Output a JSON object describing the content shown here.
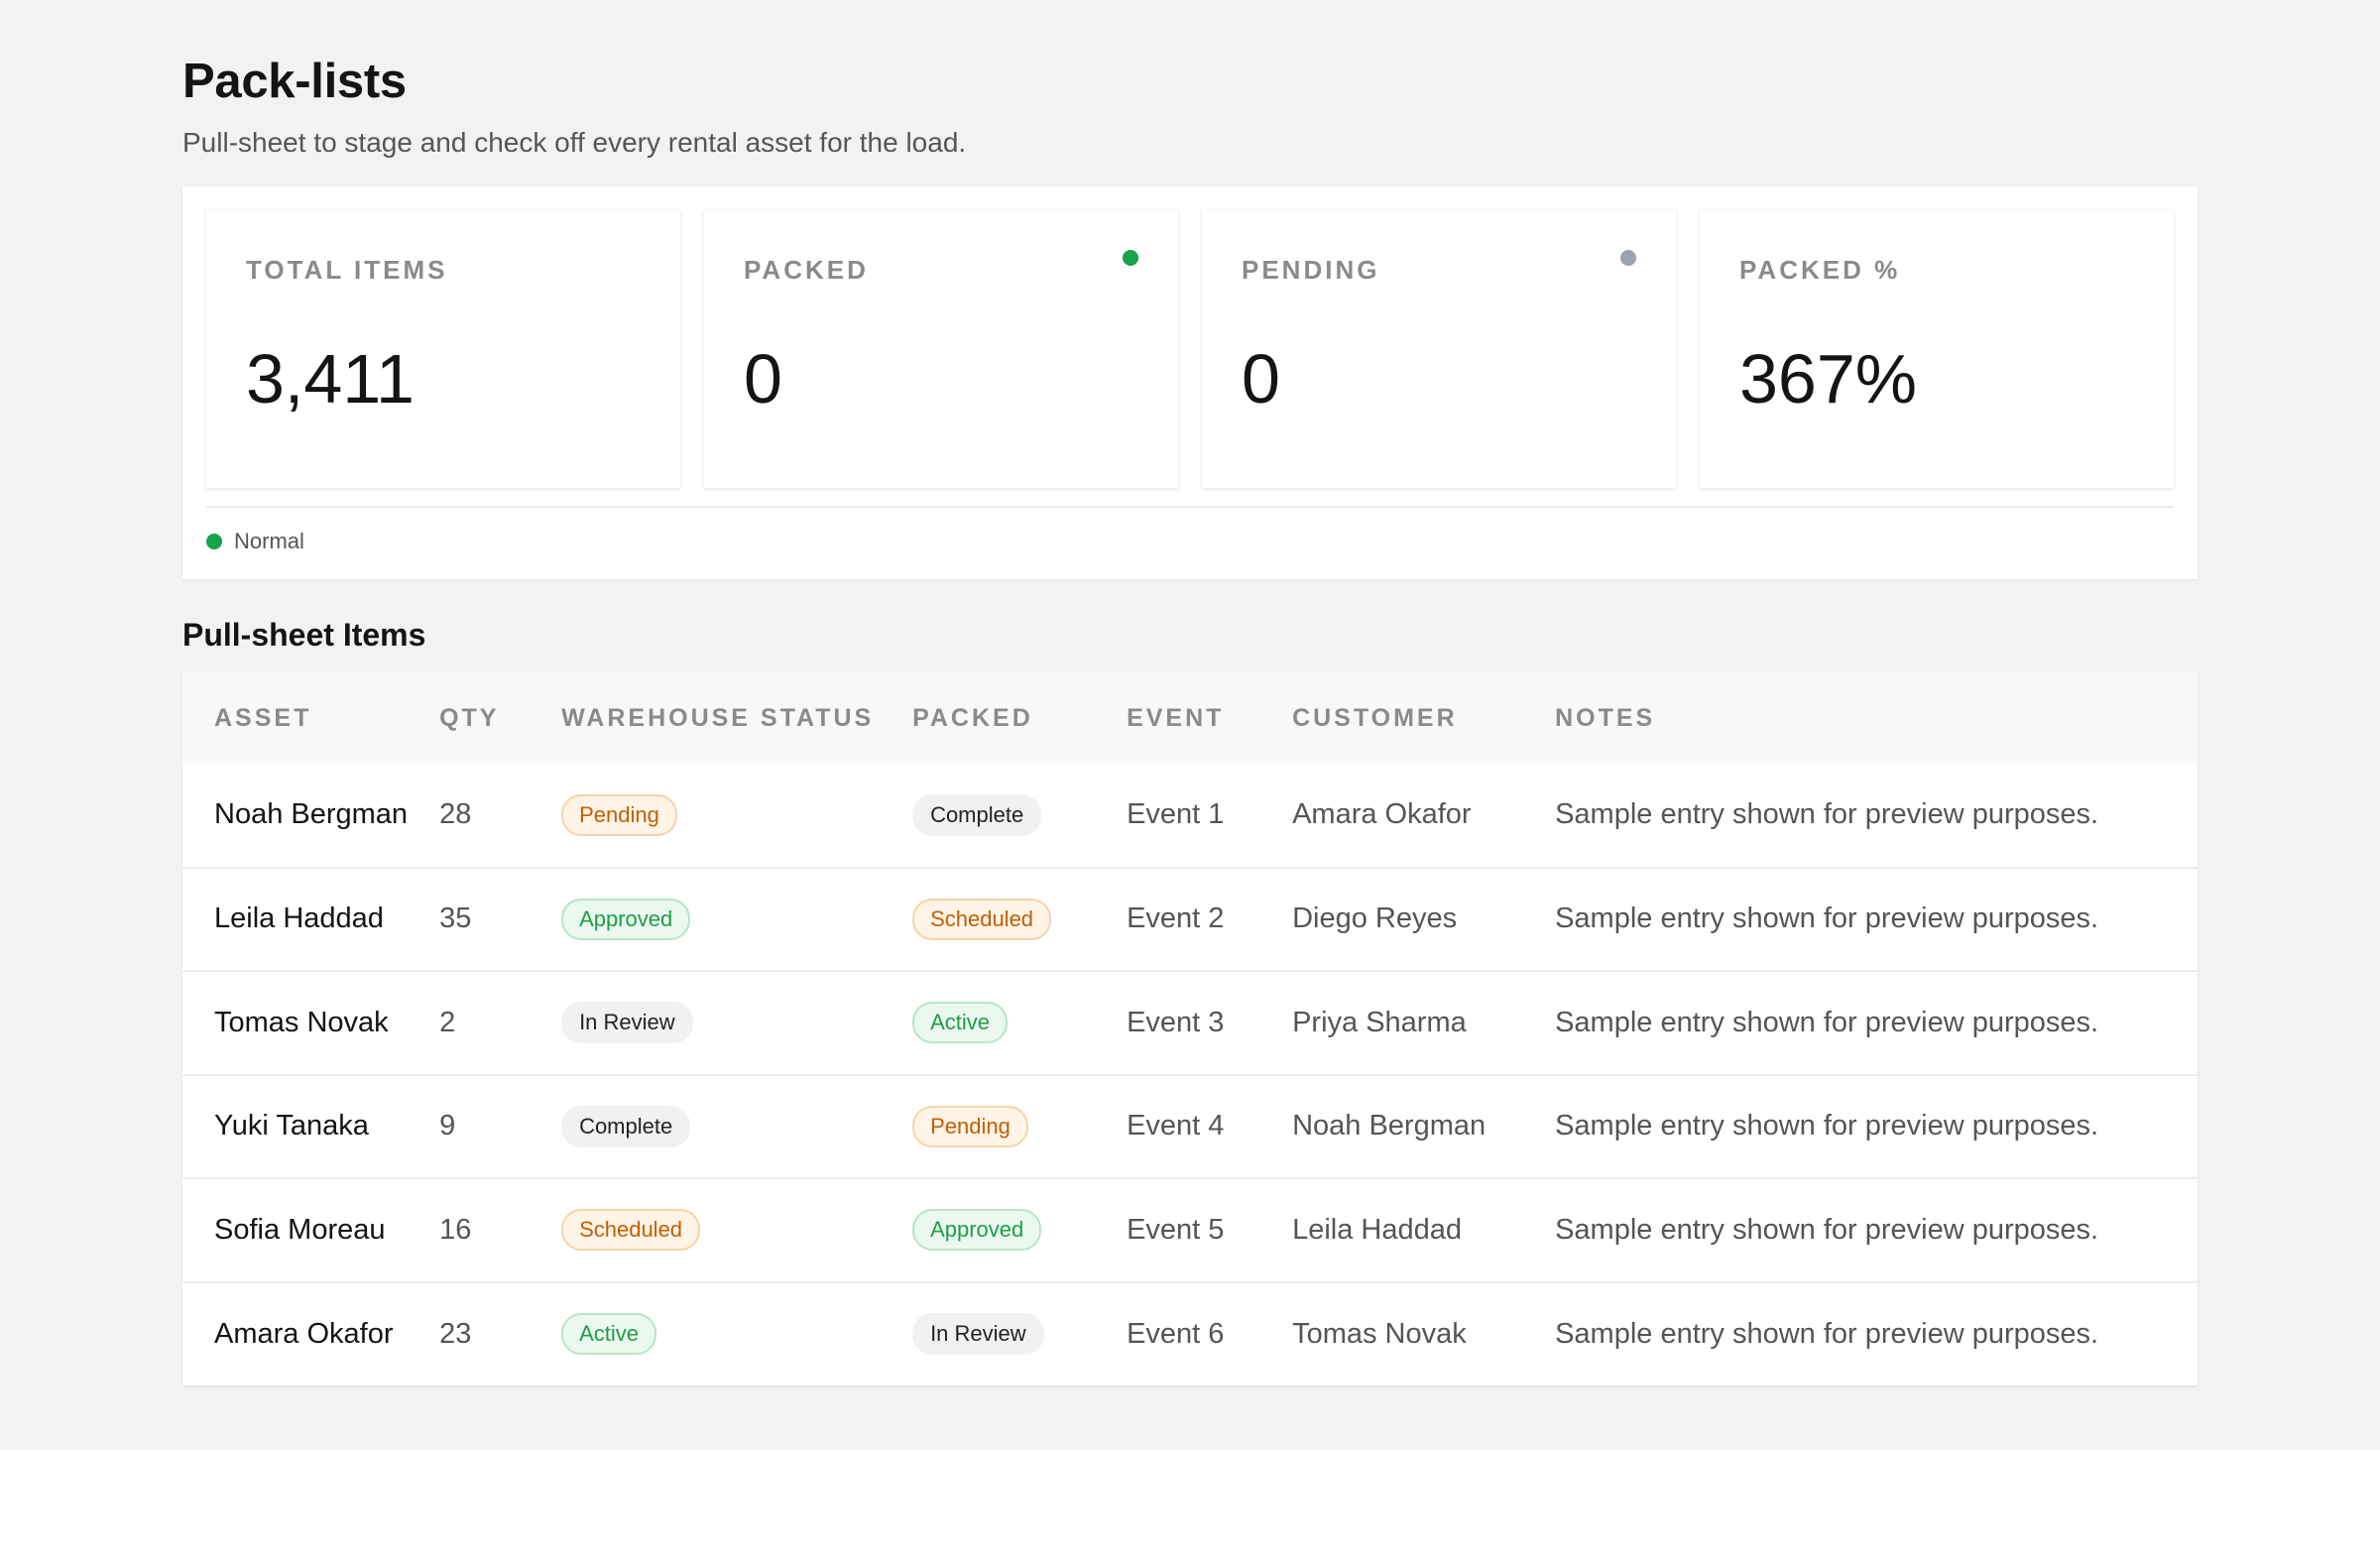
{
  "page": {
    "title": "Pack-lists",
    "subtitle": "Pull-sheet to stage and check off every rental asset for the load."
  },
  "stats": [
    {
      "label": "TOTAL ITEMS",
      "value": "3,411",
      "dot": null
    },
    {
      "label": "PACKED",
      "value": "0",
      "dot": "#16a34a"
    },
    {
      "label": "PENDING",
      "value": "0",
      "dot": "#9ca3af"
    },
    {
      "label": "PACKED %",
      "value": "367%",
      "dot": null
    }
  ],
  "legend": {
    "label": "Normal",
    "color": "#16a34a"
  },
  "section": {
    "title": "Pull-sheet Items"
  },
  "table": {
    "columns": [
      "ASSET",
      "QTY",
      "WAREHOUSE STATUS",
      "PACKED",
      "EVENT",
      "CUSTOMER",
      "NOTES"
    ],
    "rows": [
      {
        "asset": "Noah Bergman",
        "qty": "28",
        "warehouse_status": "Pending",
        "warehouse_tone": "orange",
        "packed": "Complete",
        "packed_tone": "neutral",
        "event": "Event 1",
        "customer": "Amara Okafor",
        "notes": "Sample entry shown for preview purposes."
      },
      {
        "asset": "Leila Haddad",
        "qty": "35",
        "warehouse_status": "Approved",
        "warehouse_tone": "green",
        "packed": "Scheduled",
        "packed_tone": "orange",
        "event": "Event 2",
        "customer": "Diego Reyes",
        "notes": "Sample entry shown for preview purposes."
      },
      {
        "asset": "Tomas Novak",
        "qty": "2",
        "warehouse_status": "In Review",
        "warehouse_tone": "neutral",
        "packed": "Active",
        "packed_tone": "green",
        "event": "Event 3",
        "customer": "Priya Sharma",
        "notes": "Sample entry shown for preview purposes."
      },
      {
        "asset": "Yuki Tanaka",
        "qty": "9",
        "warehouse_status": "Complete",
        "warehouse_tone": "neutral",
        "packed": "Pending",
        "packed_tone": "orange",
        "event": "Event 4",
        "customer": "Noah Bergman",
        "notes": "Sample entry shown for preview purposes."
      },
      {
        "asset": "Sofia Moreau",
        "qty": "16",
        "warehouse_status": "Scheduled",
        "warehouse_tone": "orange",
        "packed": "Approved",
        "packed_tone": "green",
        "event": "Event 5",
        "customer": "Leila Haddad",
        "notes": "Sample entry shown for preview purposes."
      },
      {
        "asset": "Amara Okafor",
        "qty": "23",
        "warehouse_status": "Active",
        "warehouse_tone": "green",
        "packed": "In Review",
        "packed_tone": "neutral",
        "event": "Event 6",
        "customer": "Tomas Novak",
        "notes": "Sample entry shown for preview purposes."
      }
    ]
  }
}
